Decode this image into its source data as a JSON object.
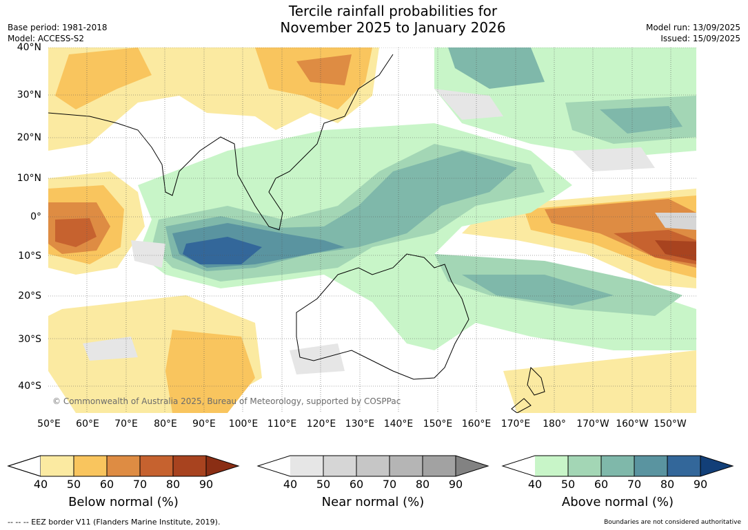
{
  "title": {
    "line1": "Tercile rainfall probabilities for",
    "line2": "November 2025 to January 2026"
  },
  "meta_left": {
    "base_period": "Base period: 1981-2018",
    "model": "Model: ACCESS-S2"
  },
  "meta_right": {
    "model_run": "Model run: 13/09/2025",
    "issued": "Issued: 15/09/2025"
  },
  "map": {
    "lat_labels": [
      "40°N",
      "30°N",
      "20°N",
      "10°N",
      "0°",
      "10°S",
      "20°S",
      "30°S",
      "40°S"
    ],
    "lon_labels": [
      "50°E",
      "60°E",
      "70°E",
      "80°E",
      "90°E",
      "100°E",
      "110°E",
      "120°E",
      "130°E",
      "140°E",
      "150°E",
      "160°E",
      "170°E",
      "180°",
      "170°W",
      "160°W",
      "150°W"
    ],
    "copyright": "© Commonwealth of Australia 2025, Bureau of Meteorology, supported by COSPPac"
  },
  "legends": [
    {
      "name": "Below normal (%)",
      "ticks": [
        "40",
        "50",
        "60",
        "70",
        "80",
        "90"
      ],
      "colors": [
        "#fbeaa1",
        "#f9c55e",
        "#de8c43",
        "#c6622f",
        "#a8431f",
        "#8a2e14"
      ]
    },
    {
      "name": "Near normal (%)",
      "ticks": [
        "40",
        "50",
        "60",
        "70",
        "80",
        "90"
      ],
      "colors": [
        "#e6e6e6",
        "#d6d6d6",
        "#c6c6c6",
        "#b5b5b5",
        "#a2a2a2",
        "#828282"
      ]
    },
    {
      "name": "Above normal (%)",
      "ticks": [
        "40",
        "50",
        "60",
        "70",
        "80",
        "90"
      ],
      "colors": [
        "#c8f5c8",
        "#a3d6b5",
        "#7fb8aa",
        "#5a94a0",
        "#33679a",
        "#123f78"
      ]
    }
  ],
  "footer": {
    "eez": "--  --  -- EEZ border V11 (Flanders Marine Institute, 2019).",
    "disclaimer": "Boundaries are not considered authoritative"
  }
}
